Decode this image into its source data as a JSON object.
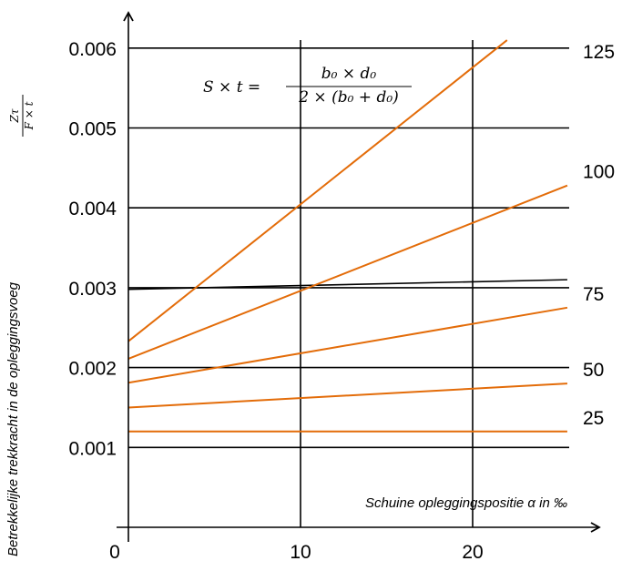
{
  "chart_data": {
    "type": "line",
    "xlabel": "Schuine opleggingspositie α in ‰",
    "ylabel": "Betrekkelijke trekkracht in de opleggingsvoeg",
    "ylabel_fraction": {
      "numerator": "Zτ",
      "denominator": "F × t"
    },
    "formula": {
      "lhs": "S × t =",
      "numerator": "b₀ × d₀",
      "denominator": "2 × (b₀ + d₀)"
    },
    "xlim": [
      0,
      26
    ],
    "ylim": [
      0,
      0.0062
    ],
    "x_ticks": [
      {
        "value": 0,
        "label": "0"
      },
      {
        "value": 10,
        "label": "10"
      },
      {
        "value": 20,
        "label": "20"
      }
    ],
    "y_ticks": [
      {
        "value": 0.001,
        "label": "0.001"
      },
      {
        "value": 0.002,
        "label": "0.002"
      },
      {
        "value": 0.003,
        "label": "0.003"
      },
      {
        "value": 0.004,
        "label": "0.004"
      },
      {
        "value": 0.005,
        "label": "0.005"
      },
      {
        "value": 0.006,
        "label": "0.006"
      }
    ],
    "gridlines_x": [
      10,
      20
    ],
    "gridlines_y": [
      0.001,
      0.002,
      0.003,
      0.004,
      0.005,
      0.006
    ],
    "reference_line": {
      "x": [
        0,
        25.5
      ],
      "y": [
        0.00298,
        0.0031
      ],
      "color": "#000000"
    },
    "series_color": "#E36C09",
    "series": [
      {
        "name": "125",
        "x": [
          0,
          22
        ],
        "y": [
          0.00233,
          0.0061
        ]
      },
      {
        "name": "100",
        "x": [
          0,
          25.5
        ],
        "y": [
          0.00211,
          0.00428
        ]
      },
      {
        "name": "75",
        "x": [
          0,
          25.5
        ],
        "y": [
          0.00181,
          0.00275
        ]
      },
      {
        "name": "50",
        "x": [
          0,
          25.5
        ],
        "y": [
          0.0015,
          0.0018
        ]
      },
      {
        "name": "25",
        "x": [
          0,
          25.5
        ],
        "y": [
          0.0012,
          0.0012
        ]
      }
    ]
  }
}
